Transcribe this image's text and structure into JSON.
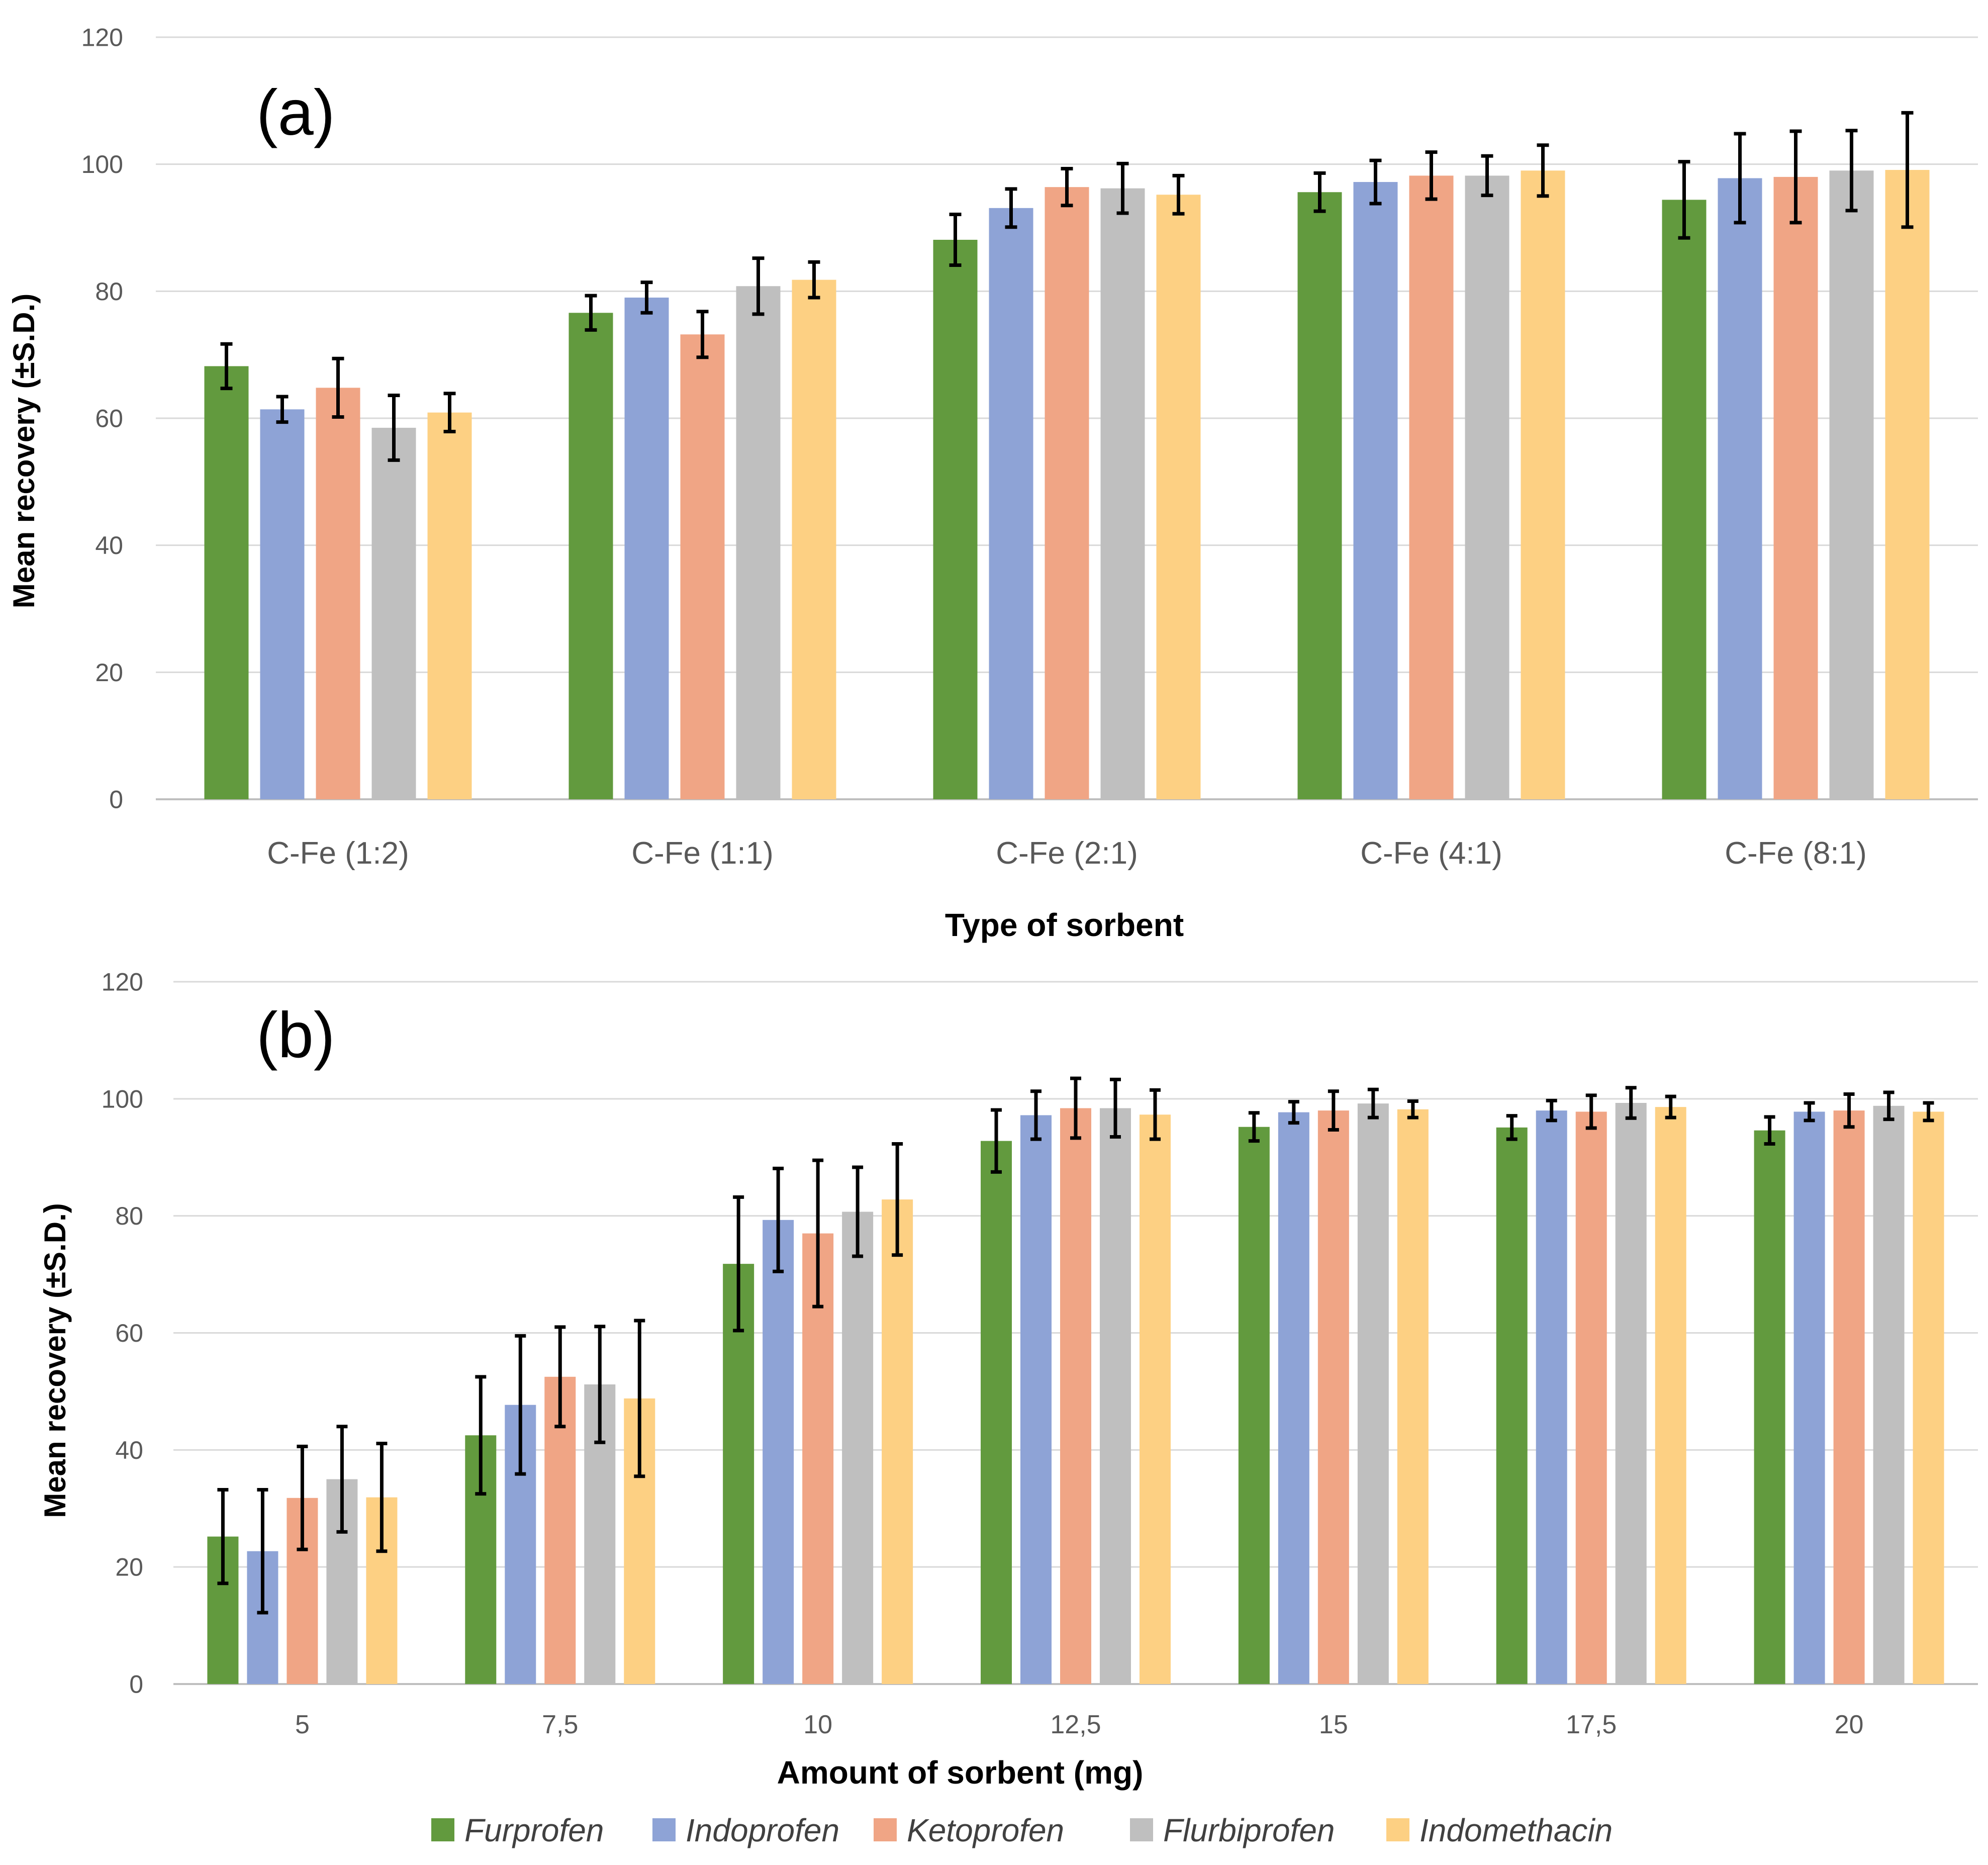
{
  "series_colors": [
    "#629a3e",
    "#8ea3d6",
    "#f0a585",
    "#bfbfbf",
    "#fdd083"
  ],
  "legend": {
    "items": [
      "Furprofen",
      "Indoprofen",
      "Ketoprofen",
      "Flurbiprofen",
      "Indomethacin"
    ]
  },
  "chart_data": [
    {
      "type": "bar",
      "panel_label": "(a)",
      "title": "",
      "xlabel": "Type of sorbent",
      "ylabel": "Mean recovery (±S.D.)",
      "ylim": [
        0,
        120
      ],
      "yticks": [
        0,
        20,
        40,
        60,
        80,
        100,
        120
      ],
      "grid": true,
      "categories": [
        "C-Fe (1:2)",
        "C-Fe (1:1)",
        "C-Fe (2:1)",
        "C-Fe (4:1)",
        "C-Fe (8:1)"
      ],
      "series": [
        {
          "name": "Furprofen",
          "values": [
            68.2,
            76.6,
            88.1,
            95.6,
            94.4
          ],
          "errors": [
            3.5,
            2.7,
            4.0,
            3.0,
            6.0
          ]
        },
        {
          "name": "Indoprofen",
          "values": [
            61.4,
            79.0,
            93.1,
            97.2,
            97.8
          ],
          "errors": [
            2.0,
            2.4,
            3.0,
            3.4,
            7.0
          ]
        },
        {
          "name": "Ketoprofen",
          "values": [
            64.8,
            73.2,
            96.4,
            98.2,
            98.0
          ],
          "errors": [
            4.6,
            3.6,
            2.9,
            3.7,
            7.2
          ]
        },
        {
          "name": "Flurbiprofen",
          "values": [
            58.5,
            80.8,
            96.2,
            98.2,
            99.0
          ],
          "errors": [
            5.1,
            4.4,
            3.9,
            3.1,
            6.3
          ]
        },
        {
          "name": "Indomethacin",
          "values": [
            60.9,
            81.8,
            95.2,
            99.0,
            99.1
          ],
          "errors": [
            3.0,
            2.8,
            3.0,
            4.0,
            9.0
          ]
        }
      ]
    },
    {
      "type": "bar",
      "panel_label": "(b)",
      "title": "",
      "xlabel": "Amount of sorbent (mg)",
      "ylabel": "Mean recovery (±S.D.)",
      "ylim": [
        0,
        120
      ],
      "yticks": [
        0,
        20,
        40,
        60,
        80,
        100,
        120
      ],
      "grid": true,
      "categories": [
        "5",
        "7,5",
        "10",
        "12,5",
        "15",
        "17,5",
        "20"
      ],
      "series": [
        {
          "name": "Furprofen",
          "values": [
            25.2,
            42.5,
            71.8,
            92.8,
            95.2,
            95.1,
            94.6
          ],
          "errors": [
            8.0,
            10.0,
            11.4,
            5.3,
            2.4,
            2.0,
            2.3
          ]
        },
        {
          "name": "Indoprofen",
          "values": [
            22.7,
            47.7,
            79.3,
            97.2,
            97.7,
            98.0,
            97.8
          ],
          "errors": [
            10.5,
            11.8,
            8.8,
            4.1,
            1.8,
            1.7,
            1.5
          ]
        },
        {
          "name": "Ketoprofen",
          "values": [
            31.8,
            52.5,
            77.0,
            98.4,
            98.0,
            97.8,
            98.0
          ],
          "errors": [
            8.8,
            8.5,
            12.5,
            5.1,
            3.3,
            2.8,
            2.8
          ]
        },
        {
          "name": "Flurbiprofen",
          "values": [
            35.0,
            51.2,
            80.7,
            98.4,
            99.2,
            99.3,
            98.8
          ],
          "errors": [
            9.0,
            9.9,
            7.6,
            4.9,
            2.4,
            2.6,
            2.3
          ]
        },
        {
          "name": "Indomethacin",
          "values": [
            31.9,
            48.8,
            82.8,
            97.3,
            98.2,
            98.6,
            97.8
          ],
          "errors": [
            9.2,
            13.3,
            9.5,
            4.2,
            1.4,
            1.8,
            1.5
          ]
        }
      ]
    }
  ]
}
